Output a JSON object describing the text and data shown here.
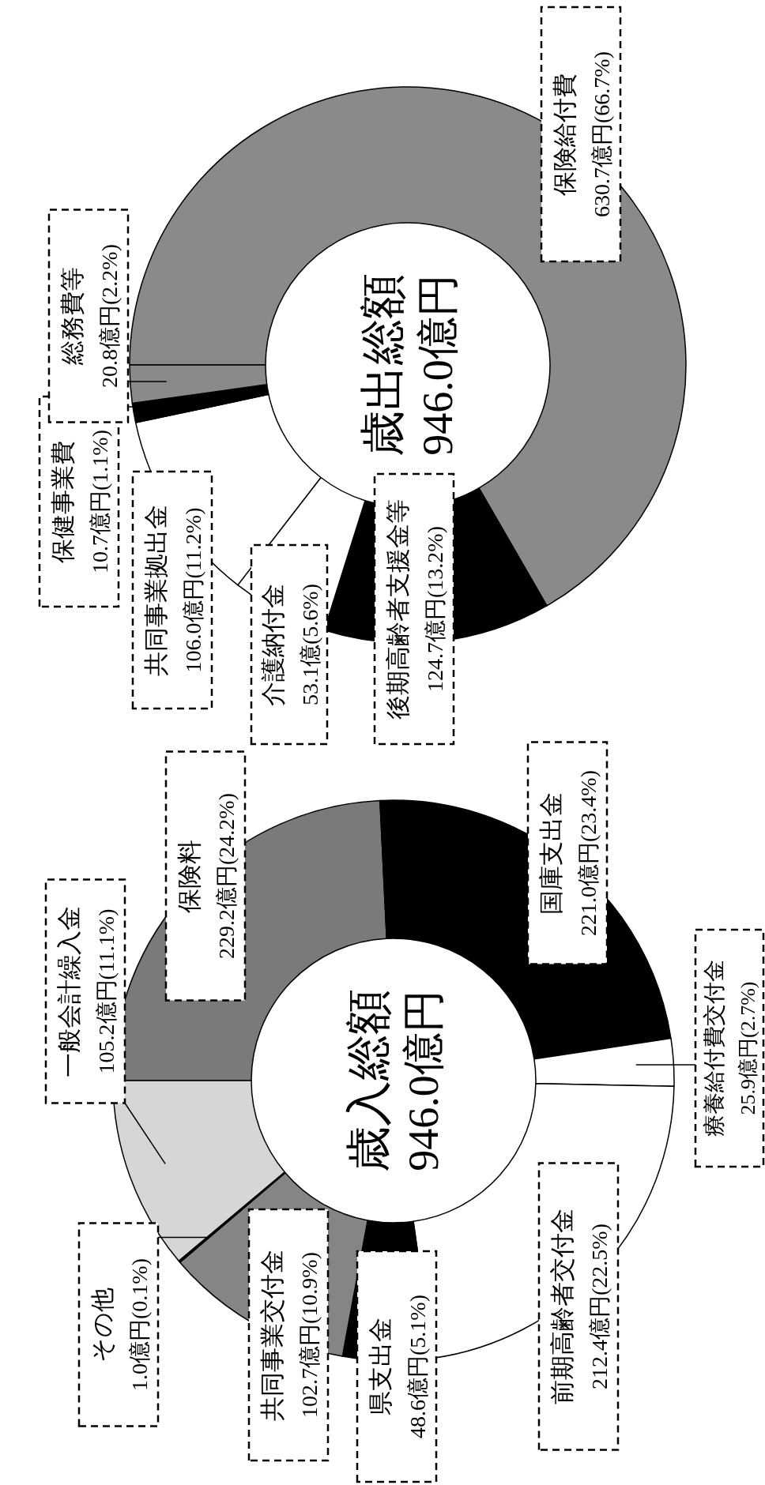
{
  "chart_data": [
    {
      "type": "donut",
      "title": "歳入総額",
      "subtitle": "946.0億円",
      "categories": [
        "保険料",
        "国庫支出金",
        "療養給付費交付金",
        "前期高齢者交付金",
        "県支出金",
        "共同事業交付金",
        "その他",
        "一般会計繰入金"
      ],
      "values": [
        229.2,
        221.0,
        25.9,
        212.4,
        48.6,
        102.7,
        1.0,
        105.2
      ],
      "value_labels": [
        "229.2億円(24.2%)",
        "221.0億円(23.4%)",
        "25.9億円(2.7%)",
        "212.4億円(22.5%)",
        "48.6億円(5.1%)",
        "102.7億円(10.9%)",
        "1.0億円(0.1%)",
        "105.2億円(11.1%)"
      ],
      "colors": [
        "#7a7a7a",
        "#000000",
        "#ffffff",
        "#ffffff",
        "#000000",
        "#858585",
        "#000000",
        "#d6d6d6"
      ]
    },
    {
      "type": "donut",
      "title": "歳出総額",
      "subtitle": "946.0億円",
      "categories": [
        "保険給付費",
        "後期高齢者支援金等",
        "介護納付金",
        "共同事業拠出金",
        "保健事業費",
        "総務費等"
      ],
      "values": [
        630.7,
        124.7,
        53.1,
        106.0,
        10.7,
        20.8
      ],
      "value_labels": [
        "630.7億円(66.7%)",
        "124.7億円(13.2%)",
        "53.1億(5.6%)",
        "106.0億円(11.2%)",
        "10.7億円(1.1%)",
        "20.8億円(2.2%)"
      ],
      "colors": [
        "#8a8a8a",
        "#000000",
        "#ffffff",
        "#ffffff",
        "#000000",
        "#8a8a8a"
      ]
    }
  ]
}
